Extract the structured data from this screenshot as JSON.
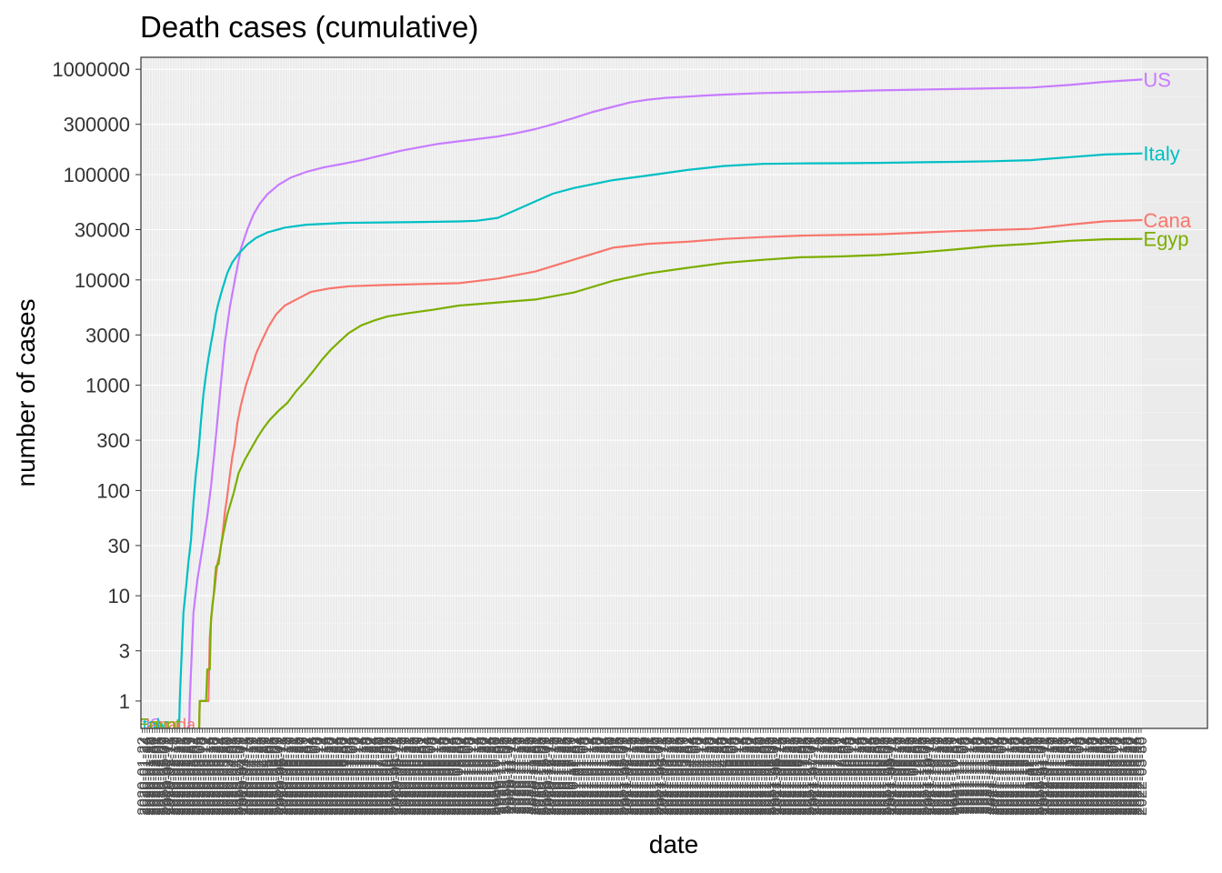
{
  "chart_data": {
    "type": "line",
    "title": "Death cases (cumulative)",
    "xlabel": "date",
    "ylabel": "number of cases",
    "y_scale": "log10",
    "ylim": [
      0.55,
      1300000
    ],
    "y_ticks": [
      1,
      3,
      10,
      30,
      100,
      300,
      1000,
      3000,
      10000,
      30000,
      100000,
      300000,
      1000000
    ],
    "y_tick_labels": [
      "1",
      "3",
      "10",
      "30",
      "100",
      "300",
      "1000",
      "3000",
      "10000",
      "30000",
      "100000",
      "300000",
      "1000000"
    ],
    "x_axis": {
      "start": "2020-01-22",
      "end": "2022-03-31",
      "tick_interval_days": 2,
      "note_tick_labels": "one date tick label every 2 days, rotated 90 degrees, overlapping and illegible"
    },
    "grid": true,
    "legend": "labels at end of lines",
    "series": [
      {
        "name": "US",
        "color": "#C77CFF",
        "start_label": "US",
        "end_label": "US",
        "points": [
          [
            "2020-01-22",
            0
          ],
          [
            "2020-02-28",
            0
          ],
          [
            "2020-02-29",
            1
          ],
          [
            "2020-03-03",
            7
          ],
          [
            "2020-03-06",
            14
          ],
          [
            "2020-03-10",
            28
          ],
          [
            "2020-03-14",
            57
          ],
          [
            "2020-03-17",
            110
          ],
          [
            "2020-03-20",
            250
          ],
          [
            "2020-03-24",
            800
          ],
          [
            "2020-03-28",
            2500
          ],
          [
            "2020-04-01",
            5500
          ],
          [
            "2020-04-05",
            10000
          ],
          [
            "2020-04-10",
            20000
          ],
          [
            "2020-04-15",
            30000
          ],
          [
            "2020-04-20",
            42000
          ],
          [
            "2020-04-25",
            53000
          ],
          [
            "2020-05-01",
            65000
          ],
          [
            "2020-05-10",
            80000
          ],
          [
            "2020-05-20",
            94000
          ],
          [
            "2020-06-01",
            106000
          ],
          [
            "2020-06-15",
            117000
          ],
          [
            "2020-07-01",
            127000
          ],
          [
            "2020-07-15",
            137000
          ],
          [
            "2020-08-01",
            153000
          ],
          [
            "2020-08-15",
            168000
          ],
          [
            "2020-09-01",
            183000
          ],
          [
            "2020-09-15",
            196000
          ],
          [
            "2020-10-01",
            207000
          ],
          [
            "2020-10-15",
            217000
          ],
          [
            "2020-11-01",
            230000
          ],
          [
            "2020-11-15",
            246000
          ],
          [
            "2020-12-01",
            270000
          ],
          [
            "2020-12-15",
            300000
          ],
          [
            "2021-01-01",
            345000
          ],
          [
            "2021-01-15",
            390000
          ],
          [
            "2021-02-01",
            440000
          ],
          [
            "2021-02-15",
            485000
          ],
          [
            "2021-03-01",
            515000
          ],
          [
            "2021-03-15",
            535000
          ],
          [
            "2021-04-01",
            550000
          ],
          [
            "2021-04-15",
            563000
          ],
          [
            "2021-05-01",
            575000
          ],
          [
            "2021-06-01",
            595000
          ],
          [
            "2021-07-01",
            605000
          ],
          [
            "2021-08-01",
            615000
          ],
          [
            "2021-09-01",
            630000
          ],
          [
            "2021-10-01",
            640000
          ],
          [
            "2021-11-01",
            650000
          ],
          [
            "2021-12-01",
            660000
          ],
          [
            "2022-01-01",
            670000
          ],
          [
            "2022-02-01",
            710000
          ],
          [
            "2022-03-01",
            760000
          ],
          [
            "2022-03-31",
            800000
          ]
        ]
      },
      {
        "name": "Italy",
        "color": "#00BFC4",
        "start_label": "Italy",
        "end_label": "Italy",
        "points": [
          [
            "2020-01-22",
            0
          ],
          [
            "2020-02-20",
            0
          ],
          [
            "2020-02-21",
            1
          ],
          [
            "2020-02-22",
            2
          ],
          [
            "2020-02-24",
            7
          ],
          [
            "2020-02-26",
            12
          ],
          [
            "2020-02-28",
            21
          ],
          [
            "2020-03-01",
            34
          ],
          [
            "2020-03-03",
            79
          ],
          [
            "2020-03-05",
            148
          ],
          [
            "2020-03-07",
            233
          ],
          [
            "2020-03-09",
            463
          ],
          [
            "2020-03-11",
            827
          ],
          [
            "2020-03-13",
            1266
          ],
          [
            "2020-03-15",
            1809
          ],
          [
            "2020-03-17",
            2503
          ],
          [
            "2020-03-19",
            3405
          ],
          [
            "2020-03-21",
            4825
          ],
          [
            "2020-03-23",
            6077
          ],
          [
            "2020-03-26",
            8165
          ],
          [
            "2020-03-30",
            11591
          ],
          [
            "2020-04-03",
            14681
          ],
          [
            "2020-04-08",
            17669
          ],
          [
            "2020-04-15",
            21645
          ],
          [
            "2020-04-22",
            25085
          ],
          [
            "2020-05-01",
            28236
          ],
          [
            "2020-05-15",
            31368
          ],
          [
            "2020-06-01",
            33415
          ],
          [
            "2020-07-01",
            34767
          ],
          [
            "2020-08-01",
            35146
          ],
          [
            "2020-09-01",
            35483
          ],
          [
            "2020-10-01",
            35918
          ],
          [
            "2020-10-15",
            36427
          ],
          [
            "2020-11-01",
            38826
          ],
          [
            "2020-11-15",
            45733
          ],
          [
            "2020-12-01",
            55576
          ],
          [
            "2020-12-15",
            65857
          ],
          [
            "2021-01-01",
            74621
          ],
          [
            "2021-02-01",
            88516
          ],
          [
            "2021-03-01",
            97945
          ],
          [
            "2021-04-01",
            110328
          ],
          [
            "2021-05-01",
            120807
          ],
          [
            "2021-06-01",
            126342
          ],
          [
            "2021-07-01",
            127584
          ],
          [
            "2021-08-01",
            128088
          ],
          [
            "2021-09-01",
            129221
          ],
          [
            "2021-10-01",
            130870
          ],
          [
            "2021-11-01",
            132161
          ],
          [
            "2021-12-01",
            133931
          ],
          [
            "2022-01-01",
            137247
          ],
          [
            "2022-02-01",
            146498
          ],
          [
            "2022-03-01",
            155000
          ],
          [
            "2022-03-31",
            159000
          ]
        ]
      },
      {
        "name": "Canada",
        "color": "#F8766D",
        "start_label": "Canada",
        "end_label": "Cana",
        "points": [
          [
            "2020-01-22",
            0
          ],
          [
            "2020-03-07",
            0
          ],
          [
            "2020-03-08",
            1
          ],
          [
            "2020-03-15",
            1
          ],
          [
            "2020-03-16",
            4
          ],
          [
            "2020-03-18",
            8
          ],
          [
            "2020-03-20",
            12
          ],
          [
            "2020-03-22",
            20
          ],
          [
            "2020-03-24",
            25
          ],
          [
            "2020-03-26",
            36
          ],
          [
            "2020-03-28",
            61
          ],
          [
            "2020-03-30",
            89
          ],
          [
            "2020-04-01",
            139
          ],
          [
            "2020-04-03",
            208
          ],
          [
            "2020-04-05",
            280
          ],
          [
            "2020-04-07",
            436
          ],
          [
            "2020-04-10",
            653
          ],
          [
            "2020-04-14",
            1010
          ],
          [
            "2020-04-18",
            1400
          ],
          [
            "2020-04-22",
            2000
          ],
          [
            "2020-04-27",
            2700
          ],
          [
            "2020-05-02",
            3600
          ],
          [
            "2020-05-08",
            4700
          ],
          [
            "2020-05-15",
            5700
          ],
          [
            "2020-05-25",
            6600
          ],
          [
            "2020-06-05",
            7700
          ],
          [
            "2020-06-20",
            8300
          ],
          [
            "2020-07-05",
            8700
          ],
          [
            "2020-08-01",
            8930
          ],
          [
            "2020-09-01",
            9130
          ],
          [
            "2020-10-01",
            9300
          ],
          [
            "2020-11-01",
            10300
          ],
          [
            "2020-12-01",
            12000
          ],
          [
            "2021-01-01",
            15600
          ],
          [
            "2021-02-01",
            20200
          ],
          [
            "2021-03-01",
            22000
          ],
          [
            "2021-04-01",
            23000
          ],
          [
            "2021-05-01",
            24500
          ],
          [
            "2021-06-01",
            25500
          ],
          [
            "2021-07-01",
            26300
          ],
          [
            "2021-08-01",
            26700
          ],
          [
            "2021-09-01",
            27100
          ],
          [
            "2021-10-01",
            28000
          ],
          [
            "2021-11-01",
            29000
          ],
          [
            "2021-12-01",
            29800
          ],
          [
            "2022-01-01",
            30500
          ],
          [
            "2022-02-01",
            33500
          ],
          [
            "2022-03-01",
            36000
          ],
          [
            "2022-03-31",
            37000
          ]
        ]
      },
      {
        "name": "Egypt",
        "color": "#7CAE00",
        "start_label": "Egypt",
        "end_label": "Egyp",
        "points": [
          [
            "2020-01-22",
            0
          ],
          [
            "2020-03-07",
            0
          ],
          [
            "2020-03-08",
            1
          ],
          [
            "2020-03-13",
            1
          ],
          [
            "2020-03-14",
            2
          ],
          [
            "2020-03-16",
            2
          ],
          [
            "2020-03-17",
            6
          ],
          [
            "2020-03-19",
            10
          ],
          [
            "2020-03-21",
            19
          ],
          [
            "2020-03-23",
            20
          ],
          [
            "2020-03-25",
            30
          ],
          [
            "2020-03-27",
            40
          ],
          [
            "2020-03-30",
            59
          ],
          [
            "2020-04-04",
            94
          ],
          [
            "2020-04-08",
            146
          ],
          [
            "2020-04-13",
            196
          ],
          [
            "2020-04-18",
            250
          ],
          [
            "2020-04-23",
            317
          ],
          [
            "2020-04-28",
            392
          ],
          [
            "2020-05-03",
            469
          ],
          [
            "2020-05-10",
            571
          ],
          [
            "2020-05-17",
            680
          ],
          [
            "2020-05-24",
            879
          ],
          [
            "2020-05-31",
            1088
          ],
          [
            "2020-06-07",
            1377
          ],
          [
            "2020-06-14",
            1766
          ],
          [
            "2020-06-21",
            2193
          ],
          [
            "2020-06-28",
            2620
          ],
          [
            "2020-07-05",
            3120
          ],
          [
            "2020-07-15",
            3700
          ],
          [
            "2020-07-25",
            4100
          ],
          [
            "2020-08-05",
            4500
          ],
          [
            "2020-08-20",
            4800
          ],
          [
            "2020-09-10",
            5200
          ],
          [
            "2020-10-01",
            5700
          ],
          [
            "2020-11-01",
            6100
          ],
          [
            "2020-12-01",
            6500
          ],
          [
            "2021-01-01",
            7600
          ],
          [
            "2021-02-01",
            9800
          ],
          [
            "2021-03-01",
            11500
          ],
          [
            "2021-04-01",
            13000
          ],
          [
            "2021-05-01",
            14500
          ],
          [
            "2021-06-01",
            15500
          ],
          [
            "2021-07-01",
            16400
          ],
          [
            "2021-08-01",
            16700
          ],
          [
            "2021-09-01",
            17200
          ],
          [
            "2021-10-01",
            18100
          ],
          [
            "2021-11-01",
            19400
          ],
          [
            "2021-12-01",
            21000
          ],
          [
            "2022-01-01",
            22000
          ],
          [
            "2022-02-01",
            23500
          ],
          [
            "2022-03-01",
            24300
          ],
          [
            "2022-03-31",
            24500
          ]
        ]
      }
    ]
  }
}
